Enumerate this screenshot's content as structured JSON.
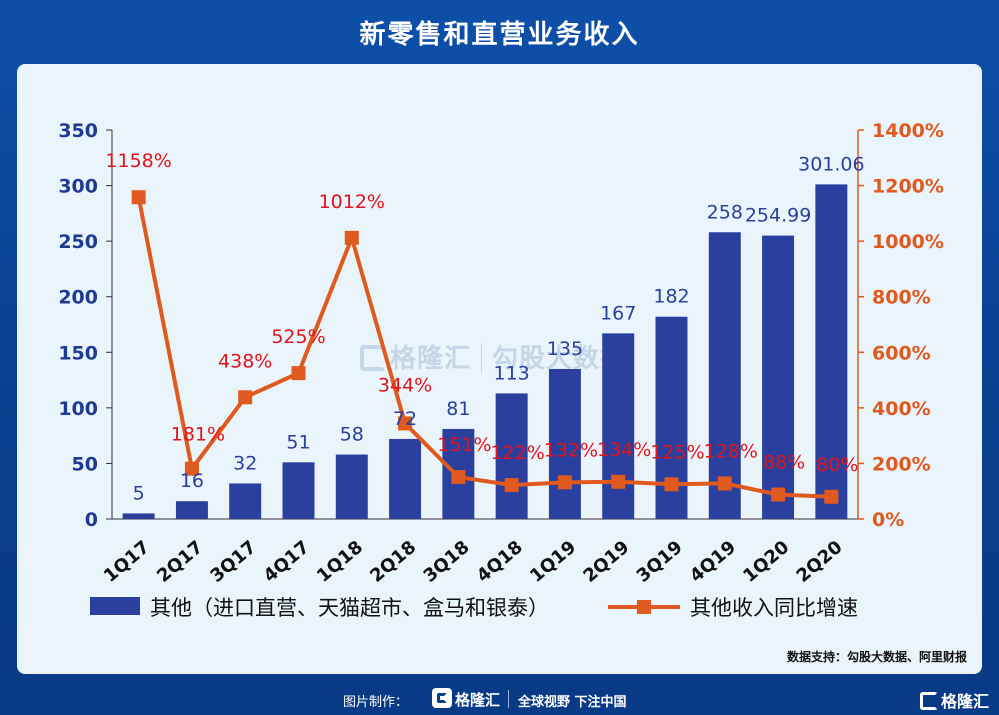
{
  "title": "新零售和直营业务收入",
  "source": "数据支持：勾股大数据、阿里财报",
  "watermark": {
    "brand": "格隆汇",
    "partner": "勾股大数据"
  },
  "footer": {
    "credit": "图片制作：",
    "brand": "格隆汇",
    "slogan": "全球视野 下注中国"
  },
  "corner_brand": "格隆汇",
  "colors": {
    "bar": "#2a3f9e",
    "line": "#e0591e",
    "left_axis": "#1f3a93",
    "right_axis": "#e0591e",
    "pct_label": "#e0141a",
    "value_label": "#2a3f9e"
  },
  "chart_data": {
    "type": "bar",
    "categories": [
      "1Q17",
      "2Q17",
      "3Q17",
      "4Q17",
      "1Q18",
      "2Q18",
      "3Q18",
      "4Q18",
      "1Q19",
      "2Q19",
      "3Q19",
      "4Q19",
      "1Q20",
      "2Q20"
    ],
    "series": [
      {
        "name": "其他（进口直营、天猫超市、盒马和银泰）",
        "type": "bar",
        "axis": "left",
        "values": [
          5,
          16,
          32,
          51,
          58,
          72,
          81,
          113,
          135,
          167,
          182,
          258,
          254.99,
          301.06
        ],
        "labels": [
          "5",
          "16",
          "32",
          "51",
          "58",
          "72",
          "81",
          "113",
          "135",
          "167",
          "182",
          "258",
          "254.99",
          "301.06"
        ]
      },
      {
        "name": "其他收入同比增速",
        "type": "line",
        "axis": "right",
        "values": [
          1158,
          181,
          438,
          525,
          1012,
          344,
          151,
          122,
          132,
          134,
          125,
          128,
          88,
          80
        ],
        "labels": [
          "1158%",
          "181%",
          "438%",
          "525%",
          "1012%",
          "344%",
          "151%",
          "122%",
          "132%",
          "134%",
          "125%",
          "128%",
          "88%",
          "80%"
        ]
      }
    ],
    "left_axis": {
      "ylim": [
        0,
        350
      ],
      "ticks": [
        "0",
        "50",
        "100",
        "150",
        "200",
        "250",
        "300",
        "350"
      ]
    },
    "right_axis": {
      "ylim": [
        0,
        1400
      ],
      "ticks": [
        "0%",
        "200%",
        "400%",
        "600%",
        "800%",
        "1000%",
        "1200%",
        "1400%"
      ]
    },
    "legend_position": "bottom"
  }
}
